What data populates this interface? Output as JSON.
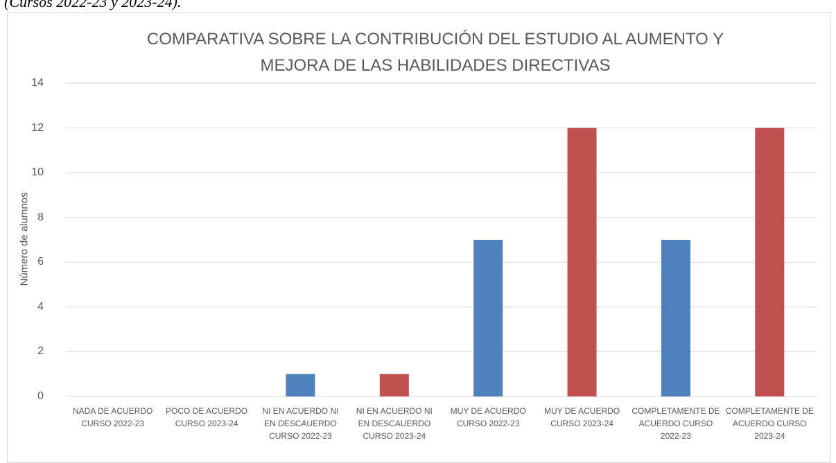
{
  "caption": "(Cursos 2022-23 y 2023-24).",
  "chart_data": {
    "type": "bar",
    "title": "COMPARATIVA SOBRE LA CONTRIBUCIÓN DEL ESTUDIO AL AUMENTO Y MEJORA DE LAS HABILIDADES DIRECTIVAS",
    "y_label": "Número de alumnos",
    "categories": [
      "NADA DE ACUERDO CURSO 2022-23",
      "POCO DE ACUERDO CURSO 2023-24",
      "NI EN ACUERDO NI EN DESCAUERDO CURSO 2022-23",
      "NI EN ACUERDO NI EN DESCAUERDO CURSO 2023-24",
      "MUY DE ACUERDO CURSO 2022-23",
      "MUY DE ACUERDO CURSO 2023-24",
      "COMPLETAMENTE DE ACUERDO CURSO 2022-23",
      "COMPLETAMENTE DE ACUERDO CURSO 2023-24"
    ],
    "values": [
      0,
      0,
      1,
      1,
      7,
      12,
      7,
      12
    ],
    "colors": [
      "#4f81bd",
      "#c0504d",
      "#4f81bd",
      "#c0504d",
      "#4f81bd",
      "#c0504d",
      "#4f81bd",
      "#c0504d"
    ],
    "ylim": [
      0,
      14
    ],
    "yticks": [
      0,
      2,
      4,
      6,
      8,
      10,
      12,
      14
    ],
    "grid": true
  }
}
